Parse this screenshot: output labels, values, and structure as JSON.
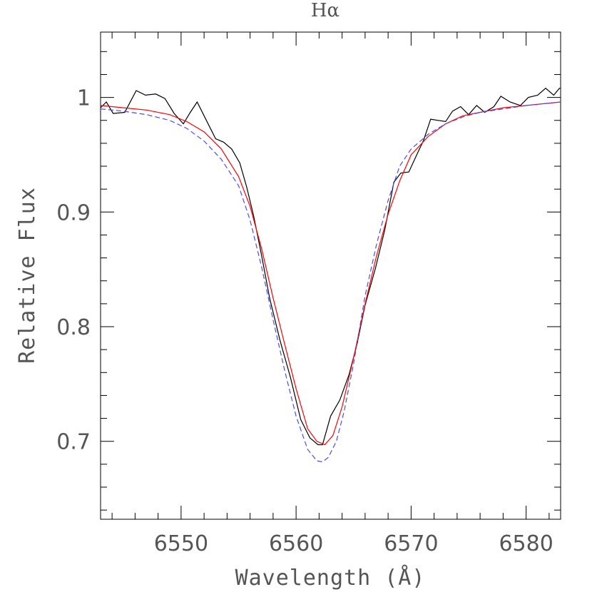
{
  "chart_data": {
    "type": "line",
    "title": "Hα",
    "xlabel": "Wavelength (Å)",
    "ylabel": "Relative Flux",
    "xlim": [
      6543,
      6583
    ],
    "ylim": [
      0.632,
      1.057
    ],
    "x_ticks": [
      6550,
      6560,
      6570,
      6580
    ],
    "x_tick_labels": [
      "6550",
      "6560",
      "6570",
      "6580"
    ],
    "y_ticks": [
      0.7,
      0.8,
      0.9,
      1.0
    ],
    "y_tick_labels": [
      "0.7",
      "0.8",
      "0.9",
      "1"
    ],
    "x_minor_step": 2,
    "y_minor_step": 0.02,
    "grid": false,
    "series": [
      {
        "style": "solid",
        "color": "#000000",
        "x": [
          6543.0,
          6543.5,
          6544.1,
          6545.1,
          6546.1,
          6546.9,
          6547.8,
          6548.6,
          6549.4,
          6550.2,
          6550.8,
          6551.4,
          6552.2,
          6553.0,
          6553.7,
          6554.4,
          6555.1,
          6555.7,
          6556.3,
          6557.0,
          6557.7,
          6558.6,
          6559.5,
          6560.4,
          6561.2,
          6561.9,
          6562.3,
          6563.0,
          6563.8,
          6564.6,
          6565.3,
          6566.0,
          6566.9,
          6567.7,
          6568.5,
          6569.1,
          6569.8,
          6570.4,
          6571.1,
          6571.7,
          6572.3,
          6573.0,
          6573.6,
          6574.3,
          6575.0,
          6575.7,
          6576.4,
          6577.2,
          6577.8,
          6578.6,
          6579.5,
          6580.2,
          6581.0,
          6581.7,
          6582.4,
          6582.9,
          6583.0
        ],
        "y": [
          0.991,
          0.996,
          0.986,
          0.987,
          1.006,
          1.002,
          1.003,
          0.999,
          0.986,
          0.977,
          0.987,
          0.996,
          0.98,
          0.964,
          0.961,
          0.955,
          0.943,
          0.922,
          0.897,
          0.862,
          0.825,
          0.788,
          0.756,
          0.719,
          0.703,
          0.697,
          0.697,
          0.722,
          0.736,
          0.758,
          0.785,
          0.819,
          0.851,
          0.884,
          0.926,
          0.934,
          0.935,
          0.948,
          0.963,
          0.981,
          0.98,
          0.979,
          0.988,
          0.992,
          0.985,
          0.993,
          0.987,
          0.992,
          1.001,
          0.996,
          0.993,
          1.0,
          1.002,
          1.008,
          1.002,
          1.008,
          1.008
        ]
      },
      {
        "style": "solid",
        "color": "#ff0000",
        "x": [
          6543.0,
          6545.0,
          6547.0,
          6549.0,
          6550.5,
          6552.0,
          6553.5,
          6555.0,
          6556.0,
          6557.0,
          6558.0,
          6559.0,
          6560.0,
          6561.0,
          6561.8,
          6562.5,
          6563.2,
          6564.0,
          6565.0,
          6566.0,
          6567.0,
          6568.0,
          6569.0,
          6570.0,
          6571.5,
          6573.0,
          6574.5,
          6576.0,
          6578.0,
          6580.0,
          6582.0,
          6583.0
        ],
        "y": [
          0.993,
          0.991,
          0.989,
          0.985,
          0.979,
          0.97,
          0.955,
          0.931,
          0.905,
          0.868,
          0.825,
          0.785,
          0.746,
          0.711,
          0.7,
          0.697,
          0.705,
          0.73,
          0.773,
          0.82,
          0.862,
          0.898,
          0.927,
          0.95,
          0.966,
          0.977,
          0.984,
          0.987,
          0.991,
          0.993,
          0.995,
          0.996
        ]
      },
      {
        "style": "dashed",
        "color": "#4b4bff",
        "x": [
          6543.0,
          6545.0,
          6547.0,
          6549.0,
          6550.5,
          6552.0,
          6553.5,
          6555.0,
          6556.0,
          6557.0,
          6558.0,
          6559.0,
          6560.0,
          6561.0,
          6561.8,
          6562.3,
          6562.8,
          6563.5,
          6564.2,
          6565.0,
          6566.0,
          6567.0,
          6568.0,
          6569.0,
          6570.0,
          6571.5,
          6573.0,
          6574.5,
          6576.0,
          6578.0,
          6580.0,
          6582.0,
          6583.0
        ],
        "y": [
          0.99,
          0.988,
          0.985,
          0.98,
          0.973,
          0.962,
          0.946,
          0.923,
          0.893,
          0.852,
          0.806,
          0.762,
          0.722,
          0.693,
          0.683,
          0.682,
          0.686,
          0.7,
          0.727,
          0.768,
          0.827,
          0.872,
          0.91,
          0.94,
          0.955,
          0.968,
          0.977,
          0.983,
          0.987,
          0.99,
          0.993,
          0.995,
          0.996
        ]
      }
    ]
  }
}
